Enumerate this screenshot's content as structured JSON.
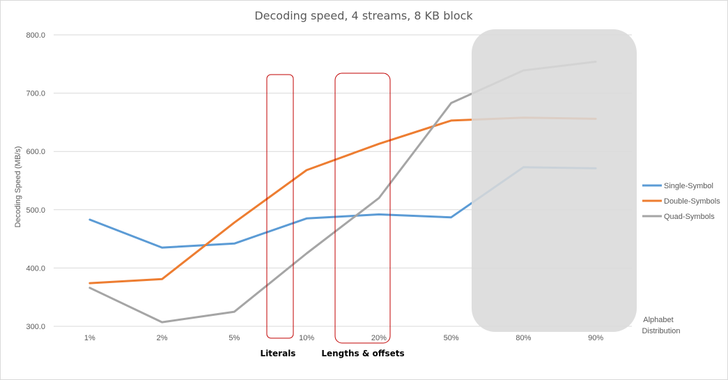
{
  "chart_data": {
    "type": "line",
    "title": "Decoding speed, 4 streams, 8 KB block",
    "ylabel": "Decoding Speed (MB/s)",
    "xlabel_lines": [
      "Alphabet",
      "Distribution"
    ],
    "categories": [
      "1%",
      "2%",
      "5%",
      "10%",
      "20%",
      "50%",
      "80%",
      "90%"
    ],
    "ylim": [
      300,
      800
    ],
    "yticks": [
      300,
      400,
      500,
      600,
      700,
      800
    ],
    "ytick_labels": [
      "300.0",
      "400.0",
      "500.0",
      "600.0",
      "700.0",
      "800.0"
    ],
    "grid": true,
    "legend_position": "right",
    "series": [
      {
        "name": "Single-Symbol",
        "color": "#5b9bd5",
        "values": [
          483,
          435,
          442,
          485,
          492,
          487,
          573,
          571
        ]
      },
      {
        "name": "Double-Symbols",
        "color": "#ed7d31",
        "values": [
          374,
          381,
          478,
          568,
          613,
          653,
          658,
          656
        ]
      },
      {
        "name": "Quad-Symbols",
        "color": "#a5a5a5",
        "values": [
          366,
          307,
          325,
          425,
          520,
          683,
          739,
          754
        ]
      }
    ],
    "annotations": [
      {
        "label": "Literals",
        "color": "#c00000"
      },
      {
        "label": "Lengths & offsets",
        "color": "#c00000"
      },
      {
        "label": "",
        "color": "#bfbfbf"
      }
    ]
  }
}
